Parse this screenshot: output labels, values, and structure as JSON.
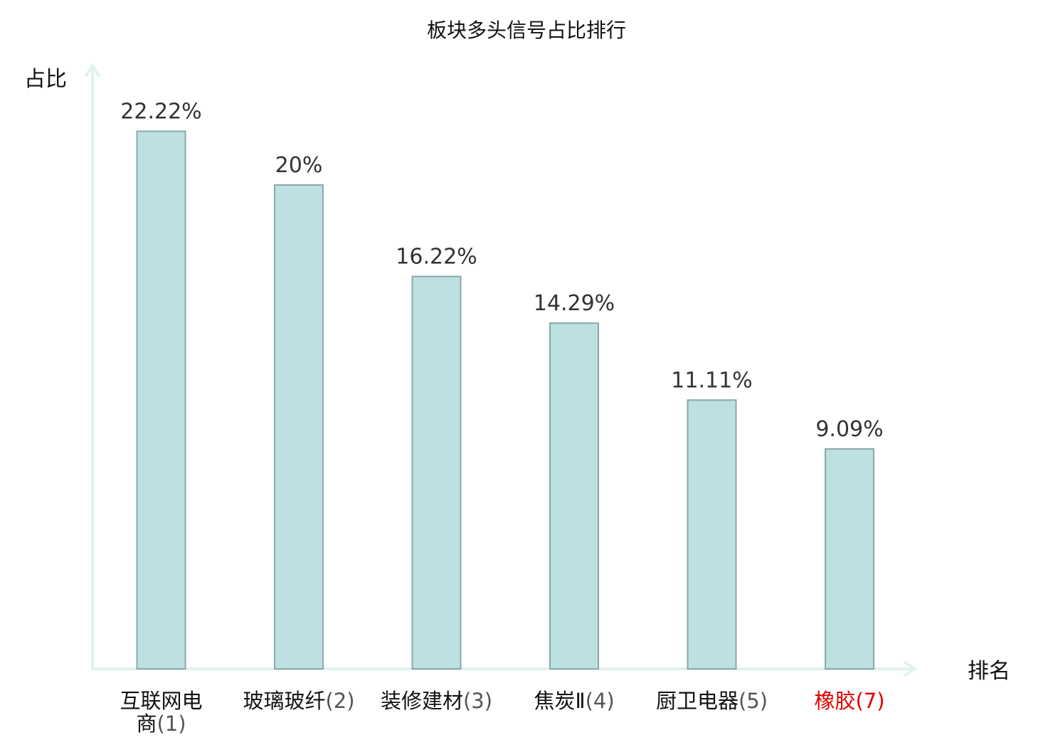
{
  "chart_data": {
    "type": "bar",
    "title": "板块多头信号占比排行",
    "ylabel": "占比",
    "xlabel": "排名",
    "categories": [
      {
        "name": "互联网电商",
        "lines": [
          "互联网电",
          "商"
        ],
        "rank": "(1)",
        "highlight": false
      },
      {
        "name": "玻璃玻纤",
        "lines": [
          "玻璃玻纤"
        ],
        "rank": "(2)",
        "highlight": false
      },
      {
        "name": "装修建材",
        "lines": [
          "装修建材"
        ],
        "rank": "(3)",
        "highlight": false
      },
      {
        "name": "焦炭Ⅱ",
        "lines": [
          "焦炭Ⅱ"
        ],
        "rank": "(4)",
        "highlight": false
      },
      {
        "name": "厨卫电器",
        "lines": [
          "厨卫电器"
        ],
        "rank": "(5)",
        "highlight": false
      },
      {
        "name": "橡胶",
        "lines": [
          "橡胶"
        ],
        "rank": "(7)",
        "highlight": true
      }
    ],
    "values": [
      22.22,
      20,
      16.22,
      14.29,
      11.11,
      9.09
    ],
    "value_labels": [
      "22.22%",
      "20%",
      "16.22%",
      "14.29%",
      "11.11%",
      "9.09%"
    ],
    "ylim": [
      0,
      25
    ],
    "grid": false,
    "colors": {
      "bar_fill": "#bde0e2",
      "bar_stroke": "#8aa8aa",
      "axis": "#dff2f0",
      "highlight_label": "#e00000",
      "normal_label": "#111111"
    }
  }
}
